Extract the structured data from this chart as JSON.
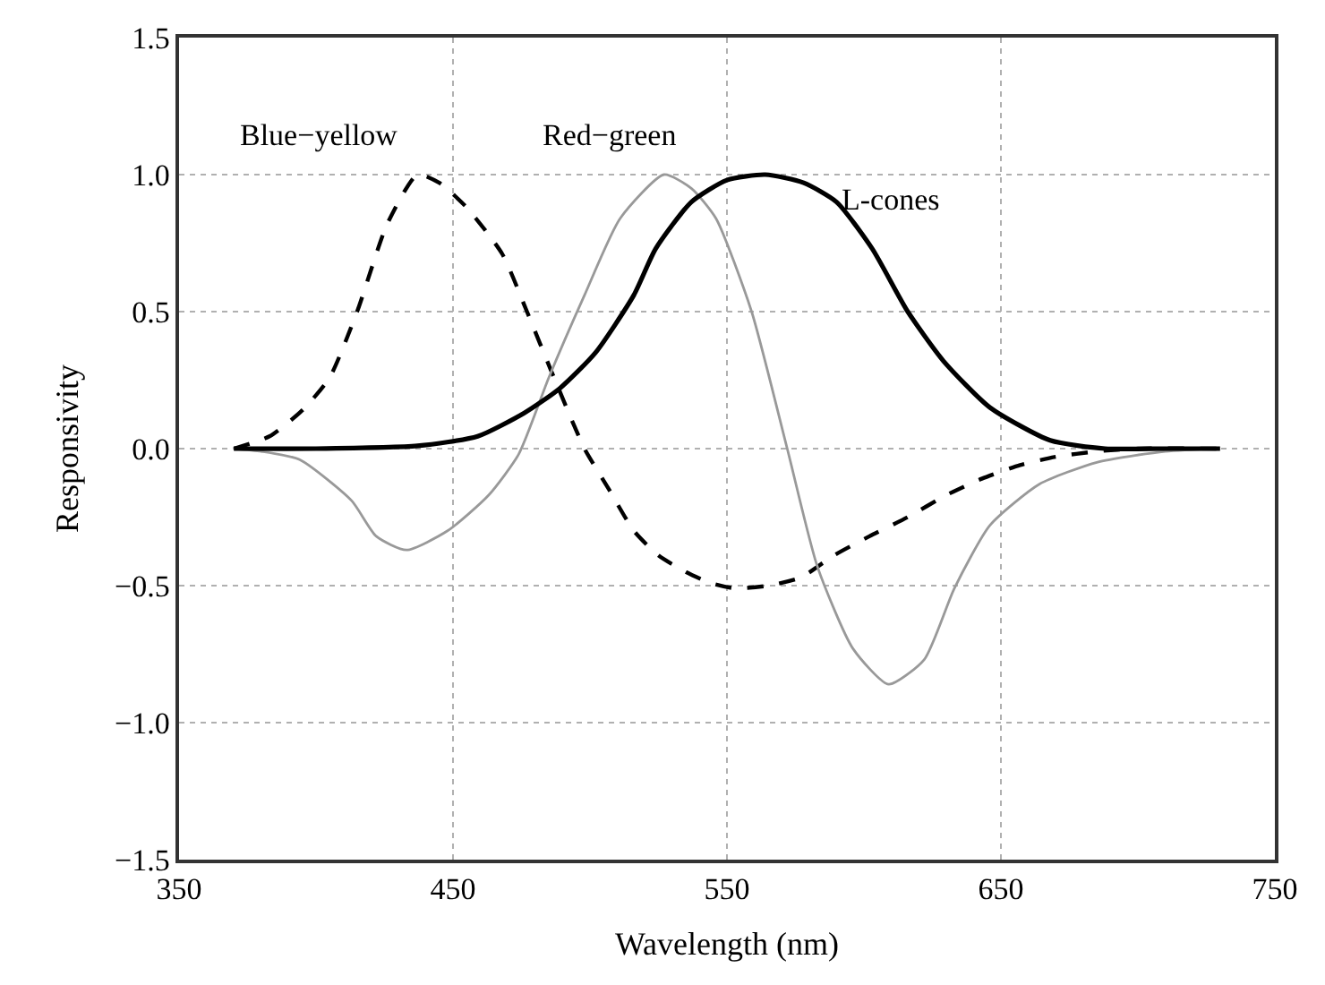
{
  "chart_data": {
    "type": "line",
    "xlabel": "Wavelength (nm)",
    "ylabel": "Responsivity",
    "xlim": [
      350,
      750
    ],
    "xticks": [
      350,
      450,
      550,
      650,
      750
    ],
    "ylim": [
      -1.5,
      1.5
    ],
    "yticks": [
      {
        "value": -1.5,
        "label": "−1.5"
      },
      {
        "value": -1.0,
        "label": "−1.0"
      },
      {
        "value": -0.5,
        "label": "−0.5"
      },
      {
        "value": 0.0,
        "label": "0.0"
      },
      {
        "value": 0.5,
        "label": "0.5"
      },
      {
        "value": 1.0,
        "label": "1.0"
      },
      {
        "value": 1.5,
        "label": "1.5"
      }
    ],
    "grid": true,
    "legend": false,
    "marker": "none",
    "series": [
      {
        "name": "Blue−yellow",
        "color": "#000000",
        "line_style": "dashed",
        "x": [
          370,
          383,
          395,
          405,
          415,
          426,
          437,
          445,
          455,
          468,
          477,
          486,
          498,
          507,
          516,
          525,
          535,
          544,
          553,
          565,
          577,
          589,
          602,
          616,
          630,
          643,
          657,
          670,
          685,
          700,
          730
        ],
        "values": [
          0,
          0.045,
          0.14,
          0.26,
          0.5,
          0.82,
          1.0,
          0.97,
          0.88,
          0.71,
          0.5,
          0.28,
          0,
          -0.15,
          -0.3,
          -0.39,
          -0.45,
          -0.49,
          -0.51,
          -0.5,
          -0.47,
          -0.39,
          -0.32,
          -0.25,
          -0.17,
          -0.11,
          -0.06,
          -0.03,
          -0.01,
          0,
          0
        ]
      },
      {
        "name": "Red−green",
        "color": "#999999",
        "line_style": "solid",
        "x": [
          370,
          380,
          394,
          413,
          422,
          433,
          448,
          463,
          474,
          485,
          498,
          511,
          527,
          537,
          546,
          559,
          572,
          583,
          596,
          609,
          622,
          633,
          646,
          664,
          685,
          710,
          730
        ],
        "values": [
          0,
          -0.01,
          -0.04,
          -0.19,
          -0.32,
          -0.37,
          -0.3,
          -0.17,
          -0.02,
          0.26,
          0.56,
          0.84,
          1.0,
          0.95,
          0.84,
          0.5,
          0.0,
          -0.43,
          -0.73,
          -0.86,
          -0.77,
          -0.51,
          -0.28,
          -0.13,
          -0.05,
          -0.01,
          0
        ]
      },
      {
        "name": "L-cones",
        "color": "#000000",
        "line_style": "solid",
        "x": [
          370,
          400,
          437,
          459,
          476,
          489,
          502,
          516,
          524,
          537,
          550,
          564,
          578,
          590,
          603,
          616,
          629,
          646,
          668,
          688,
          710,
          730
        ],
        "values": [
          0,
          0,
          0.01,
          0.045,
          0.13,
          0.22,
          0.35,
          0.56,
          0.73,
          0.9,
          0.98,
          1.0,
          0.97,
          0.9,
          0.73,
          0.5,
          0.32,
          0.15,
          0.03,
          0.0,
          0,
          0
        ]
      }
    ]
  }
}
